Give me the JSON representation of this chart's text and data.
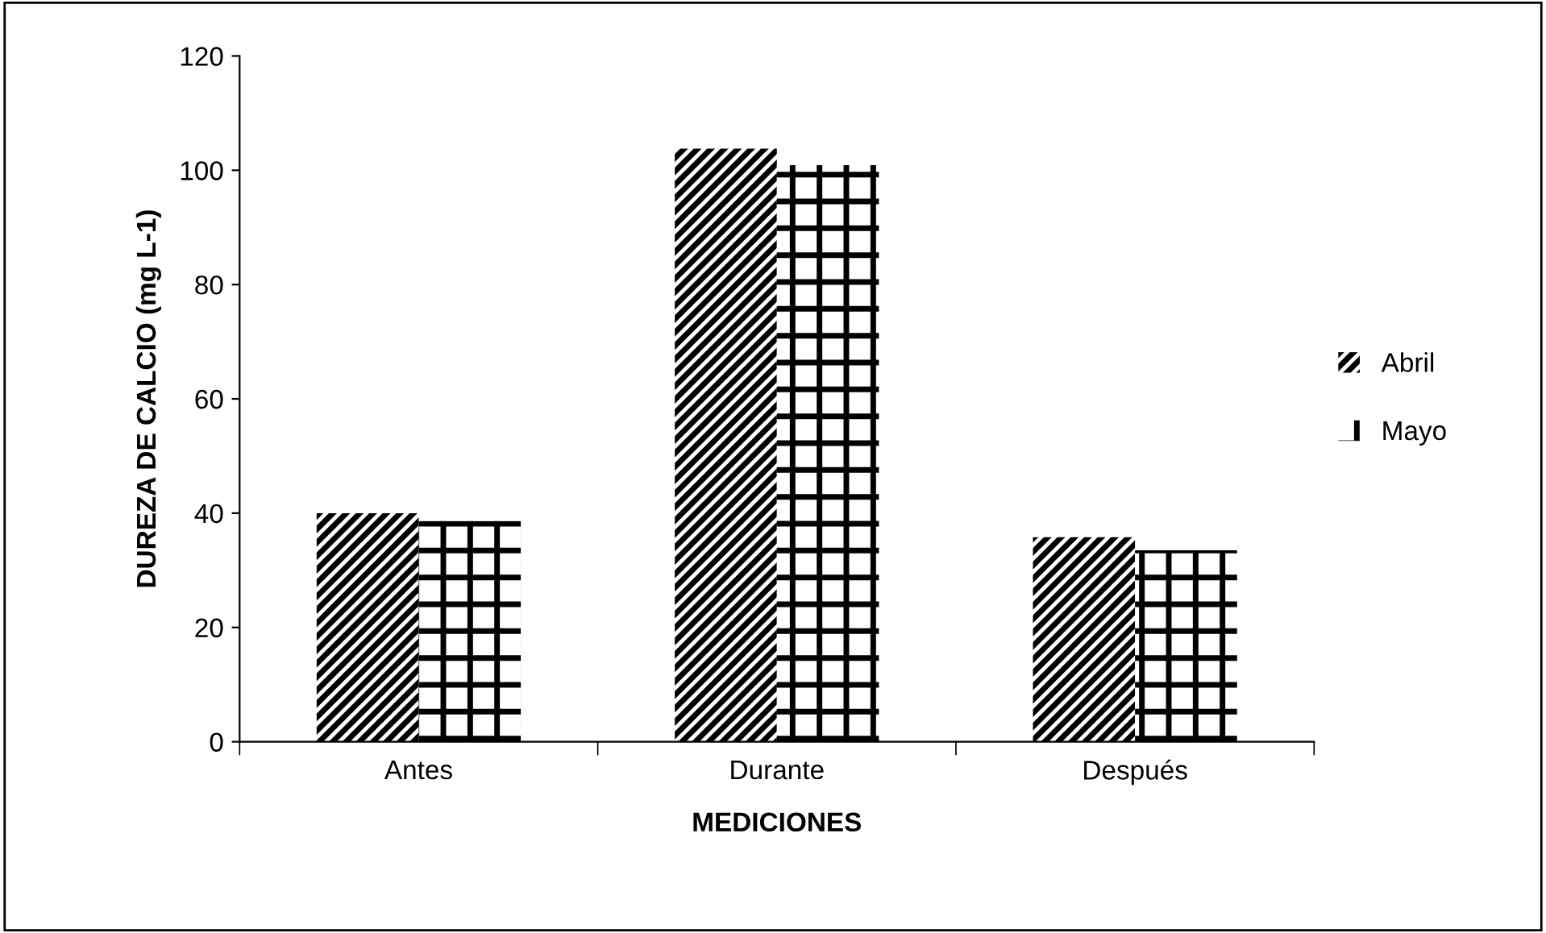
{
  "chart_data": {
    "type": "bar",
    "xlabel": "MEDICIONES",
    "ylabel": "DUREZA DE CALCIO (mg L-1)",
    "categories": [
      "Antes",
      "Durante",
      "Después"
    ],
    "series": [
      {
        "name": "Abril",
        "color": "#000000",
        "values": [
          40,
          103.8,
          35.8
        ]
      },
      {
        "name": "Mayo",
        "color": "#000000",
        "values": [
          38.6,
          100.9,
          33.5
        ]
      }
    ],
    "ylim": [
      0,
      120
    ],
    "yticks": [
      0,
      20,
      40,
      60,
      80,
      100,
      120
    ],
    "grid": false,
    "legend": "right"
  }
}
